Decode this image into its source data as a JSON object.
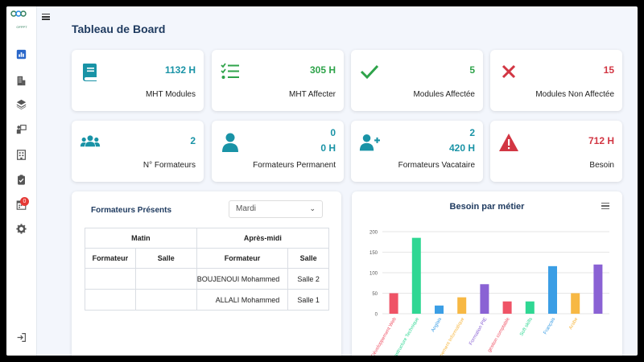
{
  "app": {
    "logo_text": "OFPPT"
  },
  "page": {
    "title": "Tableau de Board"
  },
  "sidebar": {
    "items": [
      {
        "name": "dashboard",
        "icon": "bar-chart-icon"
      },
      {
        "name": "buildings",
        "icon": "building-icon"
      },
      {
        "name": "layers",
        "icon": "layers-icon"
      },
      {
        "name": "trainers",
        "icon": "teacher-icon"
      },
      {
        "name": "rooms",
        "icon": "room-icon"
      },
      {
        "name": "tasks",
        "icon": "clipboard-icon"
      },
      {
        "name": "notifications",
        "icon": "calendar-icon",
        "badge": "0"
      },
      {
        "name": "settings",
        "icon": "gear-icon"
      }
    ],
    "logout_icon": "logout-icon"
  },
  "kpis": [
    {
      "value": "1132 H",
      "label": "MHT Modules",
      "color": "#1993a6",
      "icon": "book-icon"
    },
    {
      "value": "305 H",
      "label": "MHT Affecter",
      "color": "#2ea34a",
      "icon": "list-check-icon"
    },
    {
      "value": "5",
      "label": "Modules Affectée",
      "color": "#2ea34a",
      "icon": "check-icon"
    },
    {
      "value": "15",
      "label": "Modules Non Affectée",
      "color": "#d23643",
      "icon": "cross-icon"
    },
    {
      "value": "2",
      "label": "N° Formateurs",
      "color": "#1993a6",
      "icon": "users-icon"
    },
    {
      "value": "0",
      "value2": "0 H",
      "label": "Formateurs Permanent",
      "color": "#1993a6",
      "icon": "user-icon"
    },
    {
      "value": "2",
      "value2": "420 H",
      "label": "Formateurs Vacataire",
      "color": "#1993a6",
      "icon": "user-plus-icon"
    },
    {
      "value": "712 H",
      "label": "Besoin",
      "color": "#d23643",
      "icon": "warning-icon"
    }
  ],
  "presence": {
    "title": "Formateurs Présents",
    "day_select": "Mardi",
    "headers": {
      "morning": "Matin",
      "afternoon": "Après-midi"
    },
    "subheaders": {
      "trainer_am": "Formateur",
      "room_am": "Salle",
      "trainer_pm": "Formateur",
      "room_pm": "Salle"
    },
    "rows": [
      {
        "trainer_am": "",
        "room_am": "",
        "trainer_pm": "BOUJENOUI Mohammed",
        "room_pm": "Salle 2"
      },
      {
        "trainer_am": "",
        "room_am": "",
        "trainer_pm": "ALLALI Mohammed",
        "room_pm": "Salle 1"
      }
    ]
  },
  "chart_data": {
    "type": "bar",
    "title": "Besoin par métier",
    "ylim": [
      0,
      200
    ],
    "yticks": [
      0,
      50,
      100,
      150,
      200
    ],
    "grid": true,
    "categories": [
      "Développement Web",
      "Infrastructure Technique",
      "Anglais",
      "Développement Informatique",
      "Formation PIE",
      "gestion comptable",
      "Soft skills",
      "Français",
      "Arabe",
      ""
    ],
    "values": [
      50,
      185,
      20,
      40,
      72,
      30,
      30,
      116,
      50,
      120
    ],
    "colors": [
      "#ef5366",
      "#2fd793",
      "#3b9ee5",
      "#f7b844",
      "#8a62d4",
      "#ef5366",
      "#2fd793",
      "#3b9ee5",
      "#f7b844",
      "#8a62d4"
    ]
  }
}
